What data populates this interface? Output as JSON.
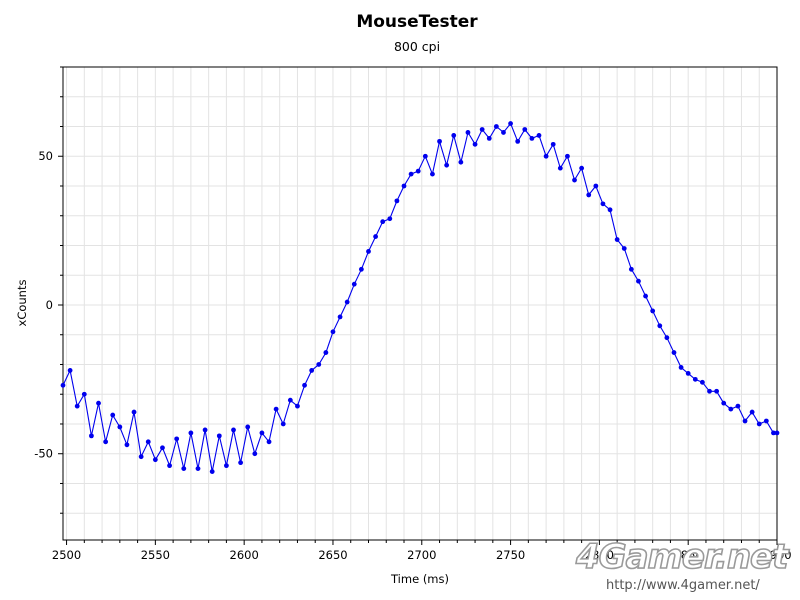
{
  "chart_data": {
    "type": "line",
    "title": "MouseTester",
    "subtitle": "800 cpi",
    "xlabel": "Time (ms)",
    "ylabel": "xCounts",
    "xlim": [
      2498,
      2900
    ],
    "ylim": [
      -79,
      80
    ],
    "x_ticks": [
      2500,
      2550,
      2600,
      2650,
      2700,
      2750,
      2800,
      2850,
      2900
    ],
    "y_ticks": [
      -50,
      0,
      50
    ],
    "grid": true,
    "legend": "none",
    "series": [
      {
        "color": "#0000ee",
        "marker": "circle",
        "x": [
          2498,
          2502,
          2506,
          2510,
          2514,
          2518,
          2522,
          2526,
          2530,
          2534,
          2538,
          2542,
          2546,
          2550,
          2554,
          2558,
          2562,
          2566,
          2570,
          2574,
          2578,
          2582,
          2586,
          2590,
          2594,
          2598,
          2602,
          2606,
          2610,
          2614,
          2618,
          2622,
          2626,
          2630,
          2634,
          2638,
          2642,
          2646,
          2650,
          2654,
          2658,
          2662,
          2666,
          2670,
          2674,
          2678,
          2682,
          2686,
          2690,
          2694,
          2698,
          2702,
          2706,
          2710,
          2714,
          2718,
          2722,
          2726,
          2730,
          2734,
          2738,
          2742,
          2746,
          2750,
          2754,
          2758,
          2762,
          2766,
          2770,
          2774,
          2778,
          2782,
          2786,
          2790,
          2794,
          2798,
          2802,
          2806,
          2810,
          2814,
          2818,
          2822,
          2826,
          2830,
          2834,
          2838,
          2842,
          2846,
          2850,
          2854,
          2858,
          2862,
          2866,
          2870,
          2874,
          2878,
          2882,
          2886,
          2890,
          2894,
          2898,
          2900
        ],
        "values": [
          -27,
          -22,
          -34,
          -30,
          -44,
          -33,
          -46,
          -37,
          -41,
          -47,
          -36,
          -51,
          -46,
          -52,
          -48,
          -54,
          -45,
          -55,
          -43,
          -55,
          -42,
          -56,
          -44,
          -54,
          -42,
          -53,
          -41,
          -50,
          -43,
          -46,
          -35,
          -40,
          -32,
          -34,
          -27,
          -22,
          -20,
          -16,
          -9,
          -4,
          1,
          7,
          12,
          18,
          23,
          28,
          29,
          35,
          40,
          44,
          45,
          50,
          44,
          55,
          47,
          57,
          48,
          58,
          54,
          59,
          56,
          60,
          58,
          61,
          55,
          59,
          56,
          57,
          50,
          54,
          46,
          50,
          42,
          46,
          37,
          40,
          34,
          32,
          22,
          19,
          12,
          8,
          3,
          -2,
          -7,
          -11,
          -16,
          -21,
          -23,
          -25,
          -26,
          -29,
          -29,
          -33,
          -35,
          -34,
          -39,
          -36,
          -40,
          -39,
          -43,
          -43
        ]
      }
    ]
  },
  "watermark": {
    "logo_text": "4Gamer.net",
    "url": "http://www.4gamer.net/"
  }
}
